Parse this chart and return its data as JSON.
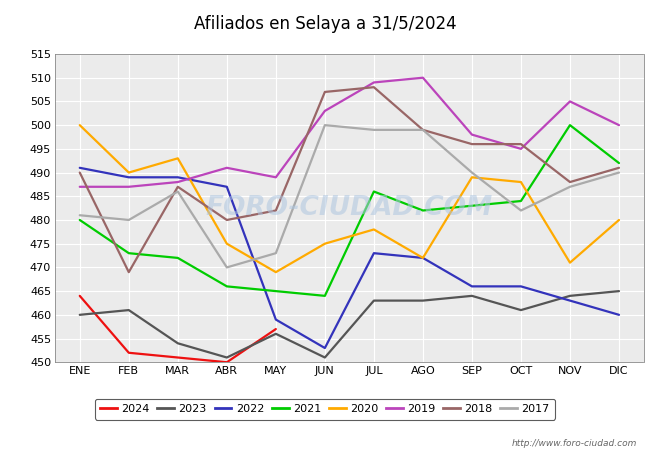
{
  "title": "Afiliados en Selaya a 31/5/2024",
  "months": [
    "ENE",
    "FEB",
    "MAR",
    "ABR",
    "MAY",
    "JUN",
    "JUL",
    "AGO",
    "SEP",
    "OCT",
    "NOV",
    "DIC"
  ],
  "series": {
    "2024": {
      "color": "#ee1111",
      "data": [
        464,
        452,
        451,
        450,
        457,
        null,
        null,
        null,
        null,
        null,
        null,
        null
      ]
    },
    "2023": {
      "color": "#555555",
      "data": [
        460,
        461,
        454,
        451,
        456,
        451,
        463,
        463,
        464,
        461,
        464,
        465
      ]
    },
    "2022": {
      "color": "#3333bb",
      "data": [
        491,
        489,
        489,
        487,
        459,
        453,
        473,
        472,
        466,
        466,
        463,
        460
      ]
    },
    "2021": {
      "color": "#00cc00",
      "data": [
        480,
        473,
        472,
        466,
        465,
        464,
        486,
        482,
        483,
        484,
        500,
        492
      ]
    },
    "2020": {
      "color": "#ffaa00",
      "data": [
        500,
        490,
        493,
        475,
        469,
        475,
        478,
        472,
        489,
        488,
        471,
        480
      ]
    },
    "2019": {
      "color": "#bb44bb",
      "data": [
        487,
        487,
        488,
        491,
        489,
        503,
        509,
        510,
        498,
        495,
        505,
        500
      ]
    },
    "2018": {
      "color": "#996666",
      "data": [
        490,
        469,
        487,
        480,
        482,
        507,
        508,
        499,
        496,
        496,
        488,
        491
      ]
    },
    "2017": {
      "color": "#aaaaaa",
      "data": [
        481,
        480,
        486,
        470,
        473,
        500,
        499,
        499,
        490,
        482,
        487,
        490
      ]
    }
  },
  "ylim": [
    450,
    515
  ],
  "yticks": [
    450,
    455,
    460,
    465,
    470,
    475,
    480,
    485,
    490,
    495,
    500,
    505,
    510,
    515
  ],
  "years_order": [
    "2024",
    "2023",
    "2022",
    "2021",
    "2020",
    "2019",
    "2018",
    "2017"
  ],
  "watermark": "FORO-CIUDAD.COM",
  "footer_url": "http://www.foro-ciudad.com",
  "title_bg": "#5b9bd5",
  "plot_bg_color": "#ebebeb",
  "grid_color": "#ffffff",
  "fig_bg": "#ffffff"
}
